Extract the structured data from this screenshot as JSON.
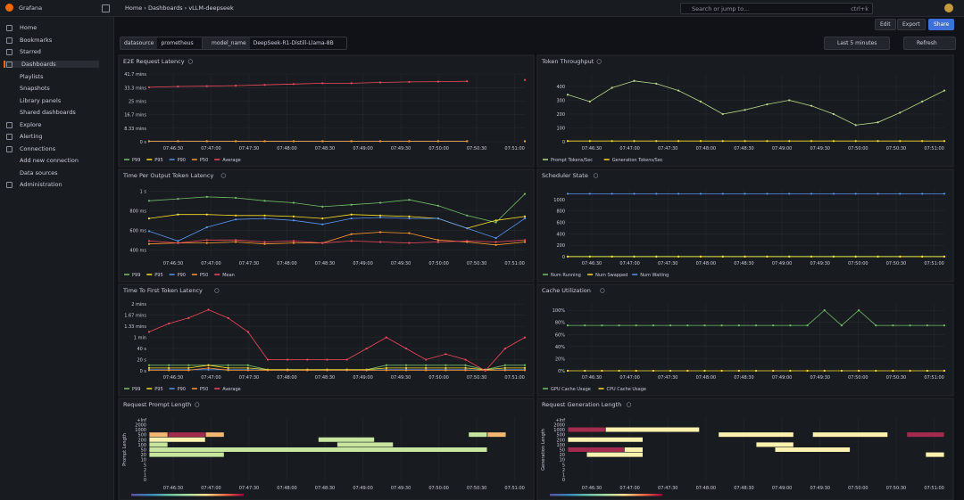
{
  "topbar": {
    "app": "Grafana",
    "breadcrumb": [
      "Home",
      "Dashboards",
      "vLLM-deepseek"
    ],
    "search": "Search or jump to...",
    "shortcut": "ctrl+k"
  },
  "sidebar": [
    "Home",
    "Bookmarks",
    "Starred",
    "Dashboards",
    "Playlists",
    "Snapshots",
    "Library panels",
    "Shared dashboards",
    "Explore",
    "Alerting",
    "Connections",
    "Add new connection",
    "Data sources",
    "Administration"
  ],
  "toolbar": [
    "Edit",
    "Export",
    "Share"
  ],
  "variables": [
    {
      "name": "datasource",
      "value": "prometheus"
    },
    {
      "name": "model_name",
      "value": "DeepSeek-R1-Distill-Llama-8B"
    }
  ],
  "time_range": "Last 5 minutes",
  "refresh": "Refresh",
  "chart_data": [
    {
      "type": "line",
      "title": "E2E Request Latency",
      "ylim": [
        0,
        41.7
      ],
      "yticks": [
        {
          "value": 0,
          "label": "0 s"
        },
        {
          "value": 8.33,
          "label": "8.33 mins"
        },
        {
          "value": 16.7,
          "label": "16.7 mins"
        },
        {
          "value": 25,
          "label": "25 mins"
        },
        {
          "value": 33.3,
          "label": "33.3 mins"
        },
        {
          "value": 41.7,
          "label": "41.7 mins"
        }
      ],
      "xticks": [
        "07:46:30",
        "07:47:00",
        "07:47:30",
        "07:48:00",
        "07:48:30",
        "07:49:00",
        "07:49:30",
        "07:50:00",
        "07:50:30",
        "07:51:00"
      ],
      "series": [
        {
          "name": "P99",
          "color": "#73bf69",
          "values": [
            0.3,
            0.3,
            0.3,
            0.3,
            0.3,
            0.3,
            0.3,
            0.3,
            0.3,
            0.3,
            0.3,
            0.3,
            null,
            0.3
          ]
        },
        {
          "name": "P95",
          "color": "#fade2a",
          "values": [
            0.3,
            0.3,
            0.3,
            0.3,
            0.3,
            0.3,
            0.3,
            0.3,
            0.3,
            0.3,
            0.3,
            0.3,
            null,
            0.3
          ]
        },
        {
          "name": "P90",
          "color": "#5794f2",
          "values": [
            0.3,
            0.3,
            0.3,
            0.3,
            0.3,
            0.3,
            0.3,
            0.3,
            0.3,
            0.3,
            0.3,
            0.3,
            null,
            0.3
          ]
        },
        {
          "name": "P50",
          "color": "#ff9830",
          "values": [
            0.3,
            0.3,
            0.3,
            0.3,
            0.3,
            0.3,
            0.3,
            0.3,
            0.3,
            0.3,
            0.3,
            0.3,
            null,
            0.3
          ]
        },
        {
          "name": "Average",
          "color": "#f2495c",
          "values": [
            33.5,
            34,
            34.2,
            34.5,
            35,
            35.5,
            36,
            36,
            36.5,
            36.8,
            37,
            37.2,
            null,
            38
          ]
        }
      ]
    },
    {
      "type": "line",
      "title": "Token Throughput",
      "ylim": [
        0,
        490
      ],
      "yticks": [
        0,
        100,
        200,
        300,
        400
      ],
      "xticks": [
        "07:46:30",
        "07:47:00",
        "07:47:30",
        "07:48:00",
        "07:48:30",
        "07:49:00",
        "07:49:30",
        "07:50:00",
        "07:50:30",
        "07:51:00"
      ],
      "series": [
        {
          "name": "Prompt Tokens/Sec",
          "color": "#b8d98a",
          "values": [
            340,
            290,
            390,
            440,
            420,
            370,
            290,
            200,
            230,
            270,
            300,
            260,
            200,
            120,
            140,
            210,
            290,
            370
          ]
        },
        {
          "name": "Generation Tokens/Sec",
          "color": "#fade2a",
          "values": [
            5,
            5,
            5,
            5,
            5,
            5,
            5,
            5,
            5,
            5,
            5,
            5,
            5,
            5,
            5,
            5,
            5,
            5
          ]
        }
      ]
    },
    {
      "type": "line",
      "title": "Time Per Output Token Latency",
      "ylim": [
        330,
        1030
      ],
      "yticks": [
        {
          "value": 400,
          "label": "400 ms"
        },
        {
          "value": 600,
          "label": "600 ms"
        },
        {
          "value": 800,
          "label": "800 ms"
        },
        {
          "value": 1000,
          "label": "1 s"
        }
      ],
      "xticks": [
        "07:46:30",
        "07:47:00",
        "07:47:30",
        "07:48:00",
        "07:48:30",
        "07:49:00",
        "07:49:30",
        "07:50:00",
        "07:50:30",
        "07:51:00"
      ],
      "series": [
        {
          "name": "P99",
          "color": "#73bf69",
          "values": [
            900,
            920,
            940,
            930,
            900,
            880,
            840,
            860,
            880,
            910,
            850,
            750,
            680,
            970
          ]
        },
        {
          "name": "P95",
          "color": "#fade2a",
          "values": [
            720,
            760,
            760,
            750,
            750,
            740,
            720,
            760,
            750,
            740,
            720,
            620,
            700,
            740
          ]
        },
        {
          "name": "P90",
          "color": "#5794f2",
          "values": [
            590,
            490,
            630,
            710,
            720,
            700,
            660,
            720,
            730,
            720,
            720,
            620,
            520,
            720
          ]
        },
        {
          "name": "P50",
          "color": "#ff9830",
          "values": [
            460,
            470,
            470,
            480,
            460,
            470,
            470,
            560,
            580,
            570,
            500,
            480,
            450,
            480
          ]
        },
        {
          "name": "Mean",
          "color": "#f2495c",
          "values": [
            490,
            470,
            500,
            500,
            480,
            490,
            470,
            490,
            480,
            470,
            480,
            490,
            480,
            500
          ]
        }
      ]
    },
    {
      "type": "line",
      "title": "Scheduler State",
      "ylim": [
        0,
        1200
      ],
      "yticks": [
        0,
        200,
        400,
        600,
        800,
        1000
      ],
      "xticks": [
        "07:46:30",
        "07:47:00",
        "07:47:30",
        "07:48:00",
        "07:48:30",
        "07:49:00",
        "07:49:30",
        "07:50:00",
        "07:50:30",
        "07:51:00"
      ],
      "series": [
        {
          "name": "Num Running",
          "color": "#73bf69",
          "values": [
            5,
            5,
            5,
            5,
            5,
            5,
            5,
            5,
            5,
            5,
            5,
            5,
            5,
            5,
            5,
            5,
            5,
            5
          ]
        },
        {
          "name": "Num Swapped",
          "color": "#fade2a",
          "values": [
            0,
            0,
            0,
            0,
            0,
            0,
            0,
            0,
            0,
            0,
            0,
            0,
            0,
            0,
            0,
            0,
            0,
            0
          ]
        },
        {
          "name": "Num Waiting",
          "color": "#5794f2",
          "values": [
            1100,
            1100,
            1100,
            1100,
            1100,
            1100,
            1100,
            1100,
            1100,
            1100,
            1100,
            1100,
            1100,
            1100,
            1100,
            1100,
            1100,
            1100
          ]
        }
      ]
    },
    {
      "type": "line",
      "title": "Time To First Token Latency",
      "ylim": [
        0,
        122
      ],
      "yticks": [
        {
          "value": 0,
          "label": "0 s"
        },
        {
          "value": 20,
          "label": "20 s"
        },
        {
          "value": 40,
          "label": "40 s"
        },
        {
          "value": 60,
          "label": "1 min"
        },
        {
          "value": 80,
          "label": "1.33 mins"
        },
        {
          "value": 100,
          "label": "1.67 mins"
        },
        {
          "value": 120,
          "label": "2 mins"
        }
      ],
      "xticks": [
        "07:46:30",
        "07:47:00",
        "07:47:30",
        "07:48:00",
        "07:48:30",
        "07:49:00",
        "07:49:30",
        "07:50:00",
        "07:50:30",
        "07:51:00"
      ],
      "series": [
        {
          "name": "P99",
          "color": "#73bf69",
          "values": [
            10,
            10,
            10,
            10,
            10,
            10,
            2,
            2,
            2,
            2,
            2,
            2,
            10,
            10,
            10,
            10,
            10,
            2,
            10,
            10
          ]
        },
        {
          "name": "P95",
          "color": "#fade2a",
          "values": [
            5,
            5,
            5,
            10,
            5,
            5,
            2,
            2,
            2,
            2,
            2,
            2,
            5,
            5,
            5,
            5,
            5,
            2,
            5,
            5
          ]
        },
        {
          "name": "P90",
          "color": "#5794f2",
          "values": [
            2,
            2,
            2,
            2,
            2,
            2,
            1,
            1,
            1,
            1,
            1,
            1,
            2,
            2,
            2,
            2,
            2,
            1,
            2,
            2
          ]
        },
        {
          "name": "P50",
          "color": "#ff9830",
          "values": [
            1,
            1,
            1,
            5,
            1,
            1,
            1,
            1,
            1,
            1,
            1,
            1,
            1,
            1,
            1,
            1,
            1,
            1,
            1,
            1
          ]
        },
        {
          "name": "Average",
          "color": "#f2495c",
          "values": [
            70,
            85,
            95,
            110,
            95,
            70,
            20,
            20,
            20,
            20,
            20,
            40,
            60,
            40,
            20,
            30,
            20,
            0,
            40,
            60
          ]
        }
      ]
    },
    {
      "type": "line",
      "title": "Cache Utilization",
      "ylim": [
        0,
        112
      ],
      "yticks": [
        {
          "value": 0,
          "label": "0%"
        },
        {
          "value": 20,
          "label": "20%"
        },
        {
          "value": 40,
          "label": "40%"
        },
        {
          "value": 60,
          "label": "60%"
        },
        {
          "value": 80,
          "label": "80%"
        },
        {
          "value": 100,
          "label": "100%"
        }
      ],
      "xticks": [
        "07:46:30",
        "07:47:00",
        "07:47:30",
        "07:48:00",
        "07:48:30",
        "07:49:00",
        "07:49:30",
        "07:50:00",
        "07:50:30",
        "07:51:00"
      ],
      "series": [
        {
          "name": "GPU Cache Usage",
          "color": "#73bf69",
          "values": [
            75,
            75,
            75,
            75,
            75,
            75,
            75,
            75,
            75,
            75,
            75,
            75,
            75,
            75,
            75,
            100,
            75,
            100,
            75,
            75,
            75,
            75,
            75
          ]
        },
        {
          "name": "CPU Cache Usage",
          "color": "#fade2a",
          "values": [
            0,
            0,
            0,
            0,
            0,
            0,
            0,
            0,
            0,
            0,
            0,
            0,
            0,
            0,
            0,
            0,
            0,
            0,
            0,
            0,
            0,
            0,
            0
          ]
        }
      ]
    },
    {
      "type": "heatmap",
      "title": "Request Prompt Length",
      "y_label": "Prompt Length",
      "buckets": [
        "+Inf",
        "2000",
        "1000",
        "500",
        "200",
        "100",
        "50",
        "20",
        "10",
        "5",
        "2",
        "1",
        "0"
      ],
      "xlim": [
        0,
        20
      ],
      "xticks": [
        "07:46:30",
        "07:47:00",
        "07:47:30",
        "07:48:00",
        "07:48:30",
        "07:49:00",
        "07:49:30",
        "07:50:00",
        "07:50:30",
        "07:51:00"
      ],
      "cells": [
        {
          "bucket": 3,
          "from": 0,
          "to": 1,
          "count": 3
        },
        {
          "bucket": 3,
          "from": 1,
          "to": 3,
          "count": 8
        },
        {
          "bucket": 3,
          "from": 3,
          "to": 4,
          "count": 3
        },
        {
          "bucket": 3,
          "from": 17,
          "to": 18,
          "count": 1
        },
        {
          "bucket": 3,
          "from": 18,
          "to": 19,
          "count": 3
        },
        {
          "bucket": 4,
          "from": 0,
          "to": 3,
          "count": 2
        },
        {
          "bucket": 4,
          "from": 9,
          "to": 12,
          "count": 1
        },
        {
          "bucket": 5,
          "from": 0,
          "to": 1,
          "count": 1
        },
        {
          "bucket": 5,
          "from": 10,
          "to": 13,
          "count": 1
        },
        {
          "bucket": 6,
          "from": 0,
          "to": 18,
          "count": 1
        },
        {
          "bucket": 7,
          "from": 0,
          "to": 4,
          "count": 1
        }
      ]
    },
    {
      "type": "heatmap",
      "title": "Request Generation Length",
      "y_label": "Generation Length",
      "buckets": [
        "+Inf",
        "2000",
        "1000",
        "500",
        "200",
        "100",
        "50",
        "20",
        "10",
        "5",
        "2",
        "1",
        "0"
      ],
      "xlim": [
        0,
        20
      ],
      "xticks": [
        "07:46:30",
        "07:47:00",
        "07:47:30",
        "07:48:00",
        "07:48:30",
        "07:49:00",
        "07:49:30",
        "07:50:00",
        "07:50:30",
        "07:51:00"
      ],
      "cells": [
        {
          "bucket": 2,
          "from": 0,
          "to": 2,
          "count": 8
        },
        {
          "bucket": 2,
          "from": 2,
          "to": 7,
          "count": 2
        },
        {
          "bucket": 3,
          "from": 8,
          "to": 12,
          "count": 2
        },
        {
          "bucket": 3,
          "from": 13,
          "to": 17,
          "count": 2
        },
        {
          "bucket": 3,
          "from": 18,
          "to": 20,
          "count": 8
        },
        {
          "bucket": 4,
          "from": 0,
          "to": 4,
          "count": 2
        },
        {
          "bucket": 5,
          "from": 10,
          "to": 12,
          "count": 2
        },
        {
          "bucket": 6,
          "from": 0,
          "to": 3,
          "count": 8
        },
        {
          "bucket": 6,
          "from": 3,
          "to": 4,
          "count": 2
        },
        {
          "bucket": 6,
          "from": 11,
          "to": 15,
          "count": 2
        },
        {
          "bucket": 7,
          "from": 1,
          "to": 4,
          "count": 2
        },
        {
          "bucket": 7,
          "from": 19,
          "to": 20,
          "count": 2
        }
      ]
    }
  ]
}
